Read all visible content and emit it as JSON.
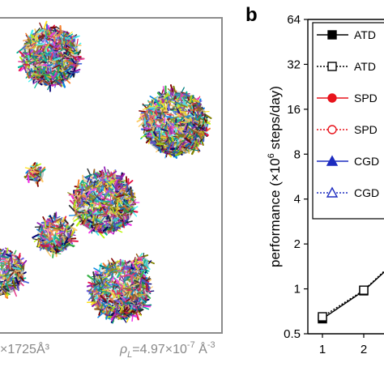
{
  "panel_a": {
    "caption_volume": "×1725Å³",
    "caption_density": "ρL=4.97×10⁻⁷ Å⁻³",
    "density_symbol": "ρ",
    "density_subscript": "L",
    "density_value": "=4.97×10",
    "density_exponent": "-7",
    "density_unit": " Å",
    "density_unit_exponent": "-3"
  },
  "panel_b": {
    "letter": "b"
  },
  "chart_data": {
    "type": "line",
    "ylabel": "performance (×10⁶ steps/day)",
    "ylabel_prefix": "performance (×10",
    "ylabel_exponent": "6",
    "ylabel_suffix": " steps/day)",
    "xlabel": "",
    "y_scale": "log2",
    "ylim": [
      0.5,
      64
    ],
    "y_ticks": [
      "0.5",
      "1",
      "2",
      "4",
      "8",
      "16",
      "32",
      "64"
    ],
    "x_ticks": [
      "1",
      "2"
    ],
    "legend_position": "top-right",
    "legend": [
      {
        "label": "ATD",
        "color": "#000000",
        "marker": "square-filled",
        "dash": "solid"
      },
      {
        "label": "ATD",
        "color": "#000000",
        "marker": "square-open",
        "dash": "dotted"
      },
      {
        "label": "SPD",
        "color": "#e8141c",
        "marker": "circle-filled",
        "dash": "solid"
      },
      {
        "label": "SPD",
        "color": "#e8141c",
        "marker": "circle-open",
        "dash": "dotted"
      },
      {
        "label": "CGD",
        "color": "#1c2bbf",
        "marker": "triangle-filled",
        "dash": "solid"
      },
      {
        "label": "CGD",
        "color": "#1c2bbf",
        "marker": "triangle-open",
        "dash": "dotted"
      }
    ],
    "series": [
      {
        "label": "ATD",
        "marker": "square-filled",
        "dash": "solid",
        "color": "#000000",
        "x": [
          1,
          2,
          2.5
        ],
        "y": [
          0.63,
          0.97,
          1.3
        ]
      },
      {
        "label": "ATD",
        "marker": "square-open",
        "dash": "dotted",
        "color": "#000000",
        "x": [
          1,
          2,
          2.5
        ],
        "y": [
          0.65,
          0.98,
          1.32
        ]
      }
    ]
  }
}
